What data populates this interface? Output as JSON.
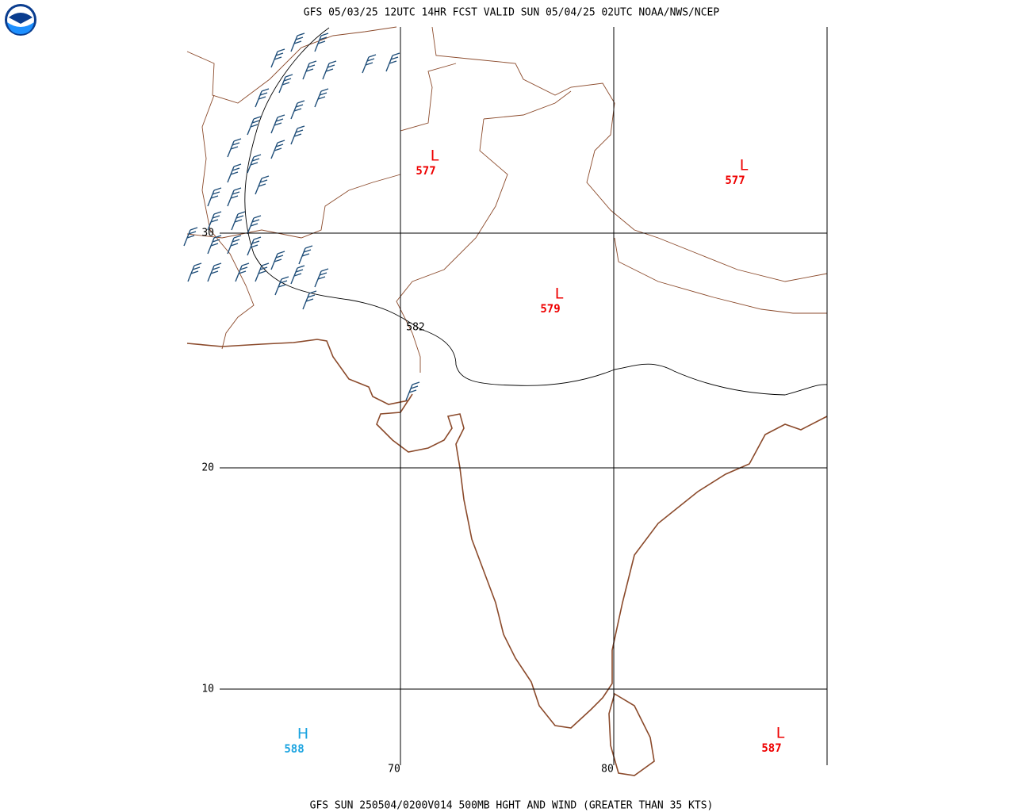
{
  "header": {
    "title": "GFS 05/03/25 12UTC 14HR FCST VALID SUN 05/04/25 02UTC NOAA/NWS/NCEP"
  },
  "footer": {
    "text": "GFS SUN 250504/0200V014 500MB HGHT AND WIND (GREATER THAN 35 KTS)"
  },
  "grid": {
    "lat_labels": [
      30,
      20,
      10
    ],
    "lon_labels": [
      70,
      80
    ]
  },
  "contour_label": 582,
  "centers": [
    {
      "symbol": "L",
      "value": 577
    },
    {
      "symbol": "L",
      "value": 577
    },
    {
      "symbol": "L",
      "value": 579
    },
    {
      "symbol": "H",
      "value": 588
    },
    {
      "symbol": "L",
      "value": 587
    }
  ]
}
